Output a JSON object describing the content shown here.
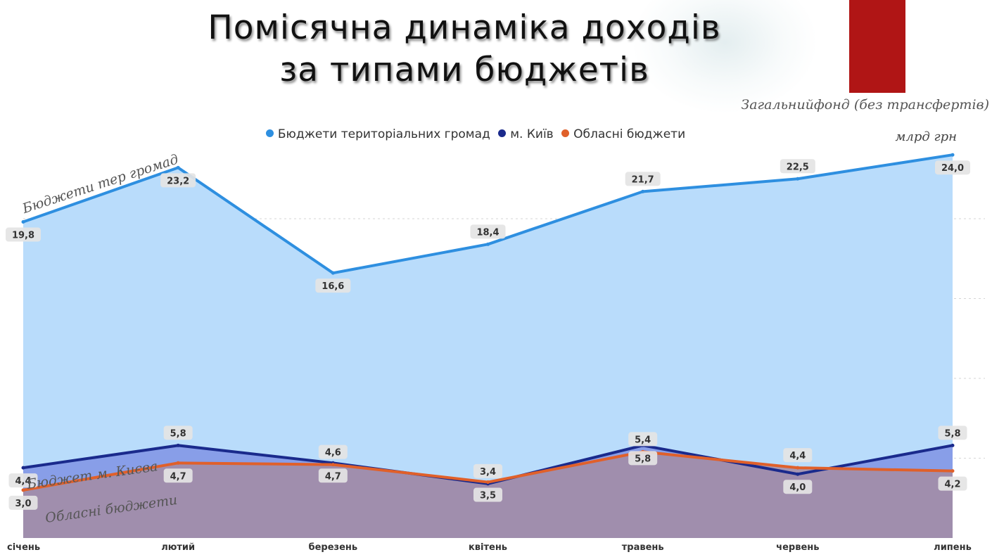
{
  "title": {
    "line1": "Помісячна динаміка доходів",
    "line2": "за типами бюджетів"
  },
  "fund_note": "Загальнийфонд (без трансфертів)",
  "unit": "млрд грн",
  "annotations": {
    "communities": "Бюджети тер громад",
    "kyiv": "Бюджет м. Києва",
    "regional": "Обласні бюджети"
  },
  "colors": {
    "communities": "#2e8fe0",
    "communities_fill": "#b9dcfb",
    "kyiv": "#1a2a8c",
    "kyiv_fill": "#7f93e4",
    "regional": "#e0602a",
    "regional_fill": "#a58ba2",
    "brand_red": "#b01515"
  },
  "chart_data": {
    "type": "area",
    "categories": [
      "січень",
      "лютий",
      "березень",
      "квітень",
      "травень",
      "червень",
      "липень"
    ],
    "ylim": [
      0,
      25
    ],
    "grid": true,
    "legend_position": "top",
    "series": [
      {
        "name": "Бюджети територіальних громад",
        "values": [
          19.8,
          23.2,
          16.6,
          18.4,
          21.7,
          22.5,
          24.0
        ],
        "labels": [
          "19,8",
          "23,2",
          "16,6",
          "18,4",
          "21,7",
          "22,5",
          "24,0"
        ]
      },
      {
        "name": "м. Київ",
        "values": [
          4.4,
          5.8,
          4.7,
          3.4,
          5.8,
          4.0,
          5.8
        ],
        "labels": [
          "4,4",
          "5,8",
          "4,7",
          "3,4",
          "5,8",
          "4,0",
          "5,8"
        ]
      },
      {
        "name": "Обласні бюджети",
        "values": [
          3.0,
          4.7,
          4.6,
          3.5,
          5.4,
          4.4,
          4.2
        ],
        "labels": [
          "3,0",
          "4,7",
          "4,6",
          "3,5",
          "5,4",
          "4,4",
          "4,2"
        ]
      }
    ]
  }
}
